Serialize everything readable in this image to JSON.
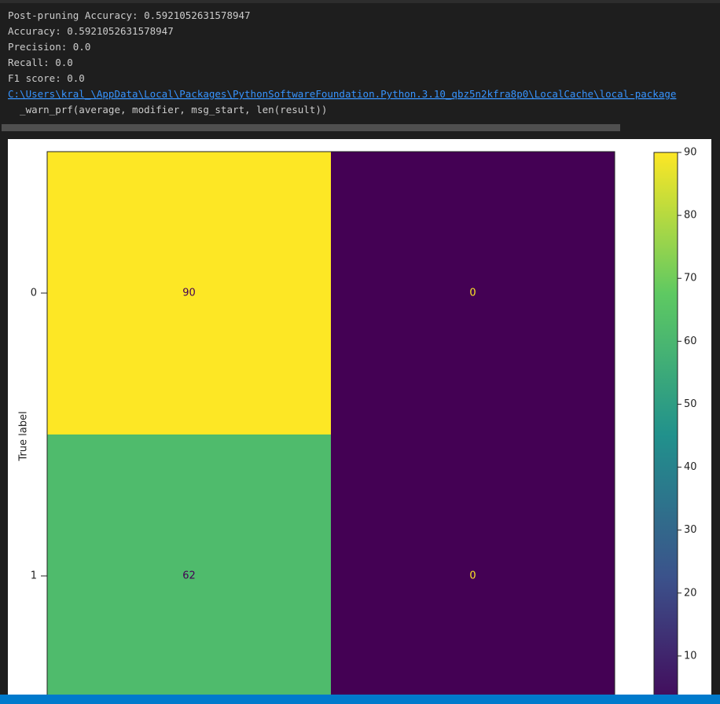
{
  "output": {
    "lines": [
      "Post-pruning Accuracy: 0.5921052631578947",
      "Accuracy: 0.5921052631578947",
      "Precision: 0.0",
      "Recall: 0.0",
      "F1 score: 0.0"
    ],
    "link": "C:\\Users\\kral_\\AppData\\Local\\Packages\\PythonSoftwareFoundation.Python.3.10_qbz5n2kfra8p0\\LocalCache\\local-package",
    "warning": "  _warn_prf(average, modifier, msg_start, len(result))"
  },
  "chart_data": {
    "type": "heatmap",
    "y_label": "True label",
    "row_labels": [
      "0",
      "1"
    ],
    "values": [
      [
        90,
        0
      ],
      [
        62,
        0
      ]
    ],
    "colorbar_lim": [
      0,
      90
    ],
    "colorbar_ticks": [
      10,
      20,
      30,
      40,
      50,
      60,
      70,
      80,
      90
    ]
  }
}
